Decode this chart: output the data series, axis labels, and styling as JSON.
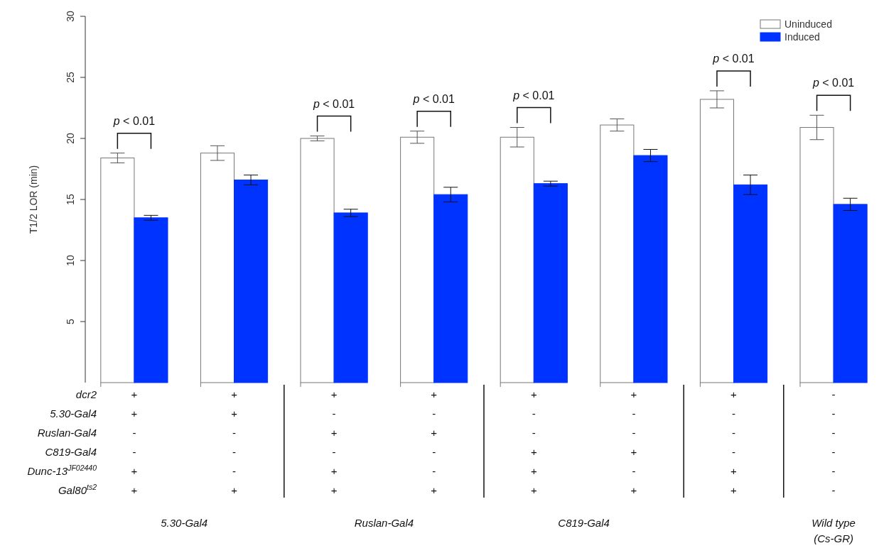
{
  "chart_data": {
    "type": "bar",
    "ylabel": "T1/2 LOR (min)",
    "categories": [
      "+\n+\n-\n-\n+\n+",
      "+\n+\n-\n-\n-\n+",
      "+\n-\n+\n-\n+\n+",
      "+\n-\n+\n-\n-\n+",
      "+\n-\n-\n+\n+\n+",
      "+\n-\n-\n+\n-\n+",
      "+\n-\n-\n-\n+\n+",
      "-\n-\n-\n-\n-\n-"
    ],
    "series": [
      {
        "name": "Uninduced",
        "color": "#ffffff",
        "values": [
          18.4,
          18.8,
          20.0,
          20.1,
          20.1,
          21.1,
          23.2,
          20.9
        ],
        "errors": [
          0.4,
          0.6,
          0.2,
          0.5,
          0.8,
          0.5,
          0.7,
          1.0
        ]
      },
      {
        "name": "Induced",
        "color": "#0033ff",
        "values": [
          13.5,
          16.6,
          13.9,
          15.4,
          16.3,
          18.6,
          16.2,
          14.6
        ],
        "errors": [
          0.2,
          0.4,
          0.3,
          0.6,
          0.2,
          0.5,
          0.8,
          0.5
        ]
      }
    ],
    "ylim": [
      0,
      30
    ],
    "yticks": [
      5,
      10,
      15,
      20,
      25,
      30
    ],
    "legend": "top right",
    "grid": false,
    "annotations": [
      "dcr2",
      "5.30-Gal4",
      "Ruslan-Gal4",
      "C819-Gal4",
      "Dunc-13$^{JF02440}$",
      "Gal80$^{ts2}$",
      "p < 0.01",
      "p < 0.01",
      "p < 0.01",
      "p < 0.01",
      "p < 0.01",
      "p < 0.01",
      "5.30-Gal4",
      "Ruslan-Gal4",
      "C819-Gal4",
      "Wild type\n(Cs-GR)"
    ]
  }
}
